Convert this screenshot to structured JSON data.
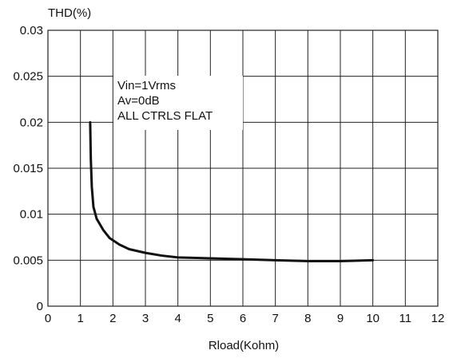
{
  "chart_data": {
    "type": "line",
    "ylabel": "THD(%)",
    "xlabel": "Rload(Kohm)",
    "xlim": [
      0,
      12
    ],
    "ylim": [
      0,
      0.03
    ],
    "x_ticks": [
      "0",
      "1",
      "2",
      "3",
      "4",
      "5",
      "6",
      "7",
      "8",
      "9",
      "10",
      "11",
      "12"
    ],
    "y_ticks": [
      "0",
      "0.005",
      "0.01",
      "0.015",
      "0.02",
      "0.025",
      "0.03"
    ],
    "grid": true,
    "annotation_lines": [
      "Vin=1Vrms",
      "Av=0dB",
      "ALL CTRLS FLAT"
    ],
    "series": [
      {
        "x": [
          1.3,
          1.32,
          1.35,
          1.4,
          1.5,
          1.7,
          1.9,
          2.2,
          2.5,
          3.0,
          3.5,
          4.0,
          5.0,
          6.0,
          7.0,
          8.0,
          9.0,
          10.0
        ],
        "y": [
          0.02,
          0.016,
          0.013,
          0.0108,
          0.0095,
          0.0083,
          0.0074,
          0.0067,
          0.0062,
          0.0058,
          0.0055,
          0.0053,
          0.0052,
          0.0051,
          0.005,
          0.0049,
          0.0049,
          0.005
        ]
      }
    ]
  },
  "colors": {
    "line": "#111111",
    "grid": "#222222",
    "background": "#ffffff"
  }
}
